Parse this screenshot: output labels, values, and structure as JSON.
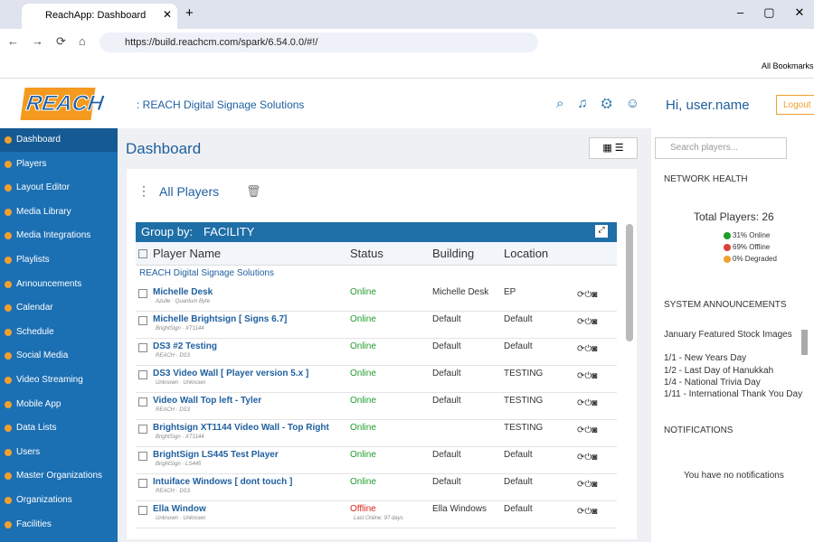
{
  "browser": {
    "tab_title": "ReachApp: Dashboard",
    "url": "https://build.reachcm.com/spark/6.54.0.0/#!/",
    "bookmarks": "All Bookmarks"
  },
  "header": {
    "logo": "REACH",
    "organization": ": REACH Digital Signage Solutions",
    "user": "Hi, user.name",
    "logout": "Logout"
  },
  "sidebar": [
    "Dashboard",
    "Players",
    "Layout Editor",
    "Media Library",
    "Media Integrations",
    "Playlists",
    "Announcements",
    "Calendar",
    "Schedule",
    "Social Media",
    "Video Streaming",
    "Mobile App",
    "Data Lists",
    "Users",
    "Master Organizations",
    "Organizations",
    "Facilities"
  ],
  "page_title": "Dashboard",
  "players": {
    "selector": "All Players",
    "group_by_label": "Group by:",
    "group_by_value": "FACILITY",
    "columns": [
      "Player Name",
      "Status",
      "Building",
      "Location"
    ],
    "group": "REACH Digital Signage Solutions",
    "rows": [
      {
        "name": "Michelle Desk",
        "sub": "Azulle · Quantum Byte",
        "status": "Online",
        "status_color": "#1f9d2b",
        "building": "Michelle Desk",
        "location": "EP"
      },
      {
        "name": "Michelle Brightsign [ Signs 6.7]",
        "sub": "BrightSign · XT1144",
        "status": "Online",
        "status_color": "#1f9d2b",
        "building": "Default",
        "location": "Default"
      },
      {
        "name": "DS3 #2 Testing",
        "sub": "REACH · DS3",
        "status": "Online",
        "status_color": "#1f9d2b",
        "building": "Default",
        "location": "Default"
      },
      {
        "name": "DS3 Video Wall [ Player version 5.x ]",
        "sub": "Unknown · Unknown",
        "status": "Online",
        "status_color": "#1f9d2b",
        "building": "Default",
        "location": "TESTING"
      },
      {
        "name": "Video Wall Top left - Tyler",
        "sub": "REACH · DS3",
        "status": "Online",
        "status_color": "#1f9d2b",
        "building": "Default",
        "location": "TESTING"
      },
      {
        "name": "Brightsign XT1144 Video Wall - Top Right",
        "sub": "BrightSign · XT1144",
        "status": "Online",
        "status_color": "#1f9d2b",
        "building": null,
        "location": "TESTING"
      },
      {
        "name": "BrightSign LS445 Test Player",
        "sub": "BrightSign · LS445",
        "status": "Online",
        "status_color": "#1f9d2b",
        "building": "Default",
        "location": "Default"
      },
      {
        "name": "Intuiface Windows [ dont touch ]",
        "sub": "REACH · DS3",
        "status": "Online",
        "status_color": "#1f9d2b",
        "building": "Default",
        "location": "Default"
      },
      {
        "name": "Ella Window",
        "sub": "Unknown · Unknown",
        "status": "Offline",
        "status_color": "#d9251c",
        "status_note": "Last Online: 97 days",
        "building": "Ella Windows",
        "location": "Default"
      }
    ]
  },
  "search_placeholder": "Search players...",
  "network_health": {
    "title": "NETWORK HEALTH",
    "total": "Total Players: 26",
    "legend": [
      {
        "label": "31% Online",
        "color": "#1f9d2b"
      },
      {
        "label": "69% Offline",
        "color": "#d9413b"
      },
      {
        "label": "0% Degraded",
        "color": "#f0a030"
      }
    ]
  },
  "announcements": {
    "title": "SYSTEM ANNOUNCEMENTS",
    "items": [
      "January Featured Stock Images",
      "1/1 - New Years Day",
      "1/2 - Last Day of Hanukkah",
      "1/4 - National Trivia Day",
      "1/11 - International Thank You Day"
    ]
  },
  "notifications": {
    "title": "NOTIFICATIONS",
    "message": "You have no notifications"
  }
}
